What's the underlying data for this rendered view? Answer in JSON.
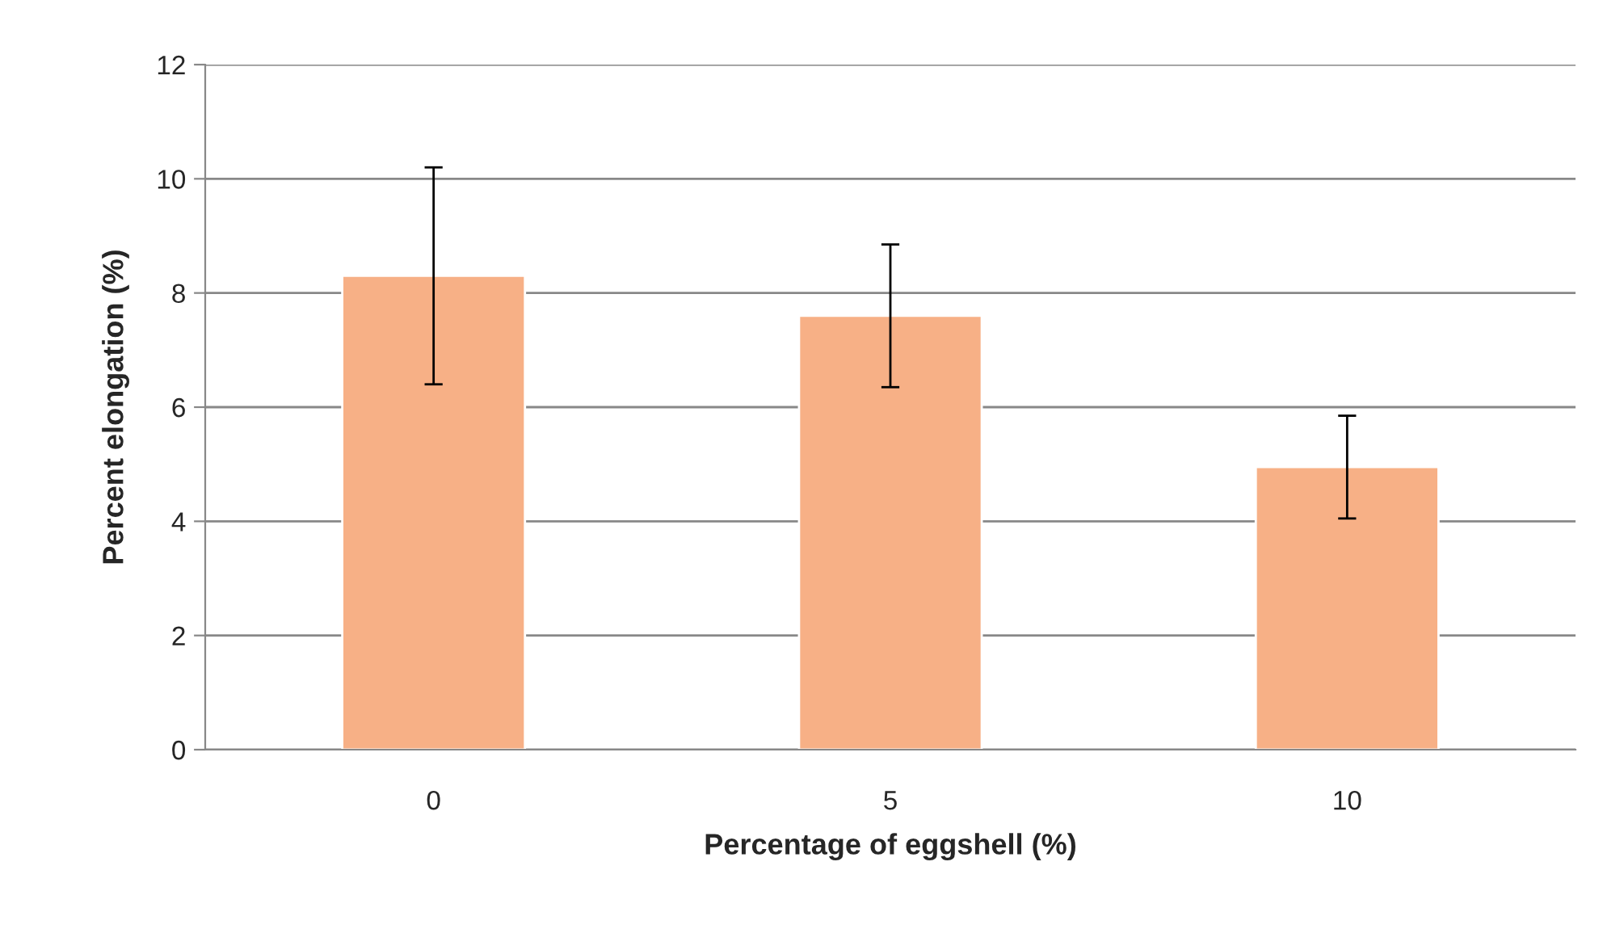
{
  "chart_data": {
    "type": "bar",
    "xlabel": "Percentage of eggshell (%)",
    "ylabel": "Percent elongation (%)",
    "categories": [
      "0",
      "5",
      "10"
    ],
    "values": [
      8.3,
      7.6,
      4.95
    ],
    "errors": [
      1.9,
      1.25,
      0.9
    ],
    "color": "#f7b086",
    "ylim": [
      0,
      12
    ],
    "yticks": [
      0,
      2,
      4,
      6,
      8,
      10,
      12
    ],
    "grid": "y"
  }
}
